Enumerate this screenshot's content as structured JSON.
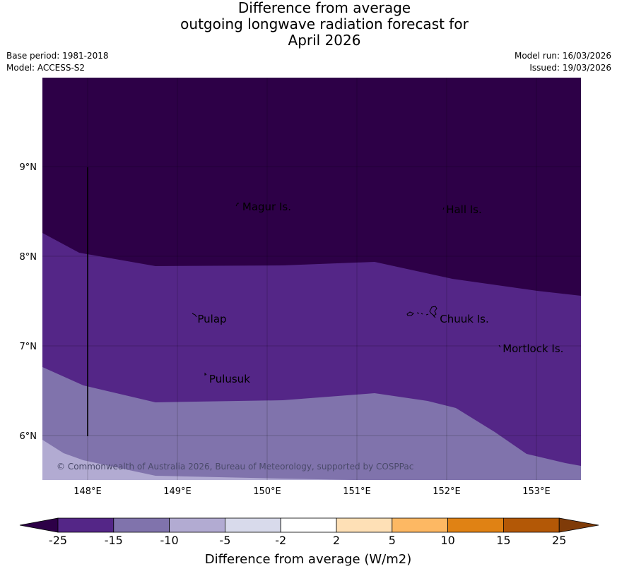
{
  "title": {
    "line1": "Difference from average",
    "line2": "outgoing longwave radiation forecast for",
    "line3": "April 2026"
  },
  "meta": {
    "base_period": "Base period: 1981-2018",
    "model": "Model: ACCESS-S2",
    "model_run": "Model run: 16/03/2026",
    "issued": "Issued: 19/03/2026"
  },
  "map": {
    "lat_ticks": [
      {
        "value": 9,
        "label": "9°N"
      },
      {
        "value": 8,
        "label": "8°N"
      },
      {
        "value": 7,
        "label": "7°N"
      },
      {
        "value": 6,
        "label": "6°N"
      }
    ],
    "lon_ticks": [
      {
        "value": 148,
        "label": "148°E"
      },
      {
        "value": 149,
        "label": "149°E"
      },
      {
        "value": 150,
        "label": "150°E"
      },
      {
        "value": 151,
        "label": "151°E"
      },
      {
        "value": 152,
        "label": "152°E"
      },
      {
        "value": 153,
        "label": "153°E"
      }
    ],
    "places": [
      {
        "name": "Magur Is.",
        "lon": 149.7,
        "lat": 8.55
      },
      {
        "name": "Hall Is.",
        "lon": 151.97,
        "lat": 8.52
      },
      {
        "name": "Pulap",
        "lon": 149.2,
        "lat": 7.3
      },
      {
        "name": "Chuuk Is.",
        "lon": 151.9,
        "lat": 7.3
      },
      {
        "name": "Mortlock Is.",
        "lon": 152.6,
        "lat": 6.97
      },
      {
        "name": "Pulusuk",
        "lon": 149.33,
        "lat": 6.63
      }
    ],
    "copyright": "© Commonwealth of Australia 2026, Bureau of Meteorology, supported by COSPPac",
    "colors": {
      "below_25": "#2d0047",
      "band_25_15": "#542687",
      "band_15_10": "#8073ac",
      "band_10_5": "#b2abd2"
    }
  },
  "colorbar": {
    "title": "Difference from average (W/m2)",
    "tick_labels": [
      "-25",
      "-15",
      "-10",
      "-5",
      "-2",
      "2",
      "5",
      "10",
      "15",
      "25"
    ],
    "colors": [
      "#542687",
      "#8073ac",
      "#b2abd2",
      "#d8daeb",
      "#ffffff",
      "#fee0b6",
      "#fdb863",
      "#e08214",
      "#b35806"
    ],
    "under_color": "#2d0047",
    "over_color": "#7f3b08"
  }
}
